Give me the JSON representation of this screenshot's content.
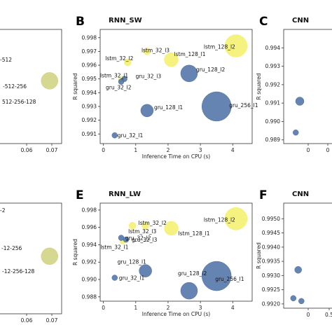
{
  "chart_data": [
    {
      "panel_letter": "",
      "title": "",
      "type": "scatter",
      "xlabel": "",
      "ylabel": "",
      "xlim": [
        0.0,
        0.075
      ],
      "ylim": [
        0.0,
        1.0
      ],
      "xticks": [
        "0.06",
        "0.07"
      ],
      "yticks": [],
      "points": [
        {
          "label": "-512",
          "x": 0.0,
          "y": 0.84,
          "size": 0,
          "color": "#e0dd6a"
        },
        {
          "label": "-512-256",
          "x": 0.063,
          "y": 0.55,
          "size": 12,
          "color": "#cfd07c"
        },
        {
          "label": "512-256-128",
          "x": 0.0,
          "y": 0.36,
          "size": 0,
          "color": "#cfd07c"
        }
      ]
    },
    {
      "panel_letter": "B",
      "title": "RNN_SW",
      "type": "scatter",
      "xlabel": "Inference Time on CPU (s)",
      "ylabel": "R squared",
      "xlim": [
        -0.1,
        4.6
      ],
      "ylim": [
        0.9903,
        0.9986
      ],
      "xticks": [
        "0",
        "1",
        "2",
        "3",
        "4"
      ],
      "yticks": [
        "0.991",
        "0.992",
        "0.993",
        "0.994",
        "0.995",
        "0.996",
        "0.997",
        "0.998"
      ],
      "points": [
        {
          "label": "lstm_128_l2",
          "x": 4.1,
          "y": 0.9974,
          "size": 16,
          "color": "#f3f06a"
        },
        {
          "label": "lstm_32_l3",
          "x": 1.35,
          "y": 0.997,
          "size": 5,
          "color": "#f3f06a"
        },
        {
          "label": "lstm_32_l2",
          "x": 0.75,
          "y": 0.9962,
          "size": 5,
          "color": "#f3f06a"
        },
        {
          "label": "lstm_128_l1",
          "x": 2.1,
          "y": 0.9964,
          "size": 10,
          "color": "#f3f06a"
        },
        {
          "label": "lstm_32_l1",
          "x": 0.55,
          "y": 0.995,
          "size": 4,
          "color": "#f3f06a"
        },
        {
          "label": "gru_32_l3",
          "x": 0.65,
          "y": 0.995,
          "size": 4,
          "color": "#4a6fa5"
        },
        {
          "label": "gru_32_l2",
          "x": 0.55,
          "y": 0.9948,
          "size": 4,
          "color": "#4a6fa5"
        },
        {
          "label": "gru_128_l2",
          "x": 2.65,
          "y": 0.9954,
          "size": 12,
          "color": "#4a6fa5"
        },
        {
          "label": "gru_128_l1",
          "x": 1.35,
          "y": 0.9927,
          "size": 9,
          "color": "#4a6fa5"
        },
        {
          "label": "gru_256_l1",
          "x": 3.5,
          "y": 0.993,
          "size": 21,
          "color": "#4a6fa5"
        },
        {
          "label": "gru_32_l1",
          "x": 0.35,
          "y": 0.9909,
          "size": 4,
          "color": "#4a6fa5"
        }
      ]
    },
    {
      "panel_letter": "C",
      "title": "CNN",
      "type": "scatter",
      "xlabel": "",
      "ylabel": "R squared",
      "xlim": [
        0.0,
        1.0
      ],
      "ylim": [
        0.9888,
        0.995
      ],
      "xticks": [
        "0",
        "0"
      ],
      "yticks": [
        "0.989",
        "0.990",
        "0.991",
        "0.992",
        "0.993",
        "0.994"
      ],
      "points": [
        {
          "label": "",
          "x": 0.2,
          "y": 0.9911,
          "size": 6,
          "color": "#4a6fa5"
        },
        {
          "label": "",
          "x": 0.15,
          "y": 0.9894,
          "size": 4,
          "color": "#4a6fa5"
        }
      ]
    },
    {
      "panel_letter": "",
      "title": "",
      "type": "scatter",
      "xlabel": "",
      "ylabel": "",
      "xlim": [
        0.0,
        0.075
      ],
      "ylim": [
        0.0,
        1.0
      ],
      "xticks": [
        "0.06",
        "0.07"
      ],
      "yticks": [],
      "points": [
        {
          "label": "-2",
          "x": 0.0,
          "y": 0.8,
          "size": 0,
          "color": "#e0dd6a"
        },
        {
          "label": "-12-256",
          "x": 0.063,
          "y": 0.52,
          "size": 12,
          "color": "#cfd07c"
        },
        {
          "label": "-12-256-128",
          "x": 0.0,
          "y": 0.28,
          "size": 0,
          "color": "#cfd07c"
        }
      ]
    },
    {
      "panel_letter": "E",
      "title": "RNN_LW",
      "type": "scatter",
      "xlabel": "Inference Time on CPU (s)",
      "ylabel": "R squared",
      "xlim": [
        -0.1,
        4.6
      ],
      "ylim": [
        0.9875,
        0.9988
      ],
      "xticks": [
        "0",
        "1",
        "2",
        "3",
        "4"
      ],
      "yticks": [
        "0.988",
        "0.990",
        "0.992",
        "0.994",
        "0.996",
        "0.998"
      ],
      "points": [
        {
          "label": "lstm_128_l2",
          "x": 4.1,
          "y": 0.997,
          "size": 16,
          "color": "#f3f06a"
        },
        {
          "label": "lstm_32_l3",
          "x": 0.9,
          "y": 0.9962,
          "size": 5,
          "color": "#f3f06a"
        },
        {
          "label": "lstm_32_l2",
          "x": 1.3,
          "y": 0.9962,
          "size": 5,
          "color": "#f3f06a"
        },
        {
          "label": "lstm_128_l1",
          "x": 2.1,
          "y": 0.9959,
          "size": 10,
          "color": "#f3f06a"
        },
        {
          "label": "lstm_32_l1",
          "x": 0.6,
          "y": 0.9944,
          "size": 4,
          "color": "#f3f06a"
        },
        {
          "label": "gru_32_l3",
          "x": 0.7,
          "y": 0.9946,
          "size": 4,
          "color": "#4a6fa5"
        },
        {
          "label": "gru_32_l2",
          "x": 0.55,
          "y": 0.9948,
          "size": 4,
          "color": "#4a6fa5"
        },
        {
          "label": "gru_128_l1",
          "x": 1.3,
          "y": 0.991,
          "size": 9,
          "color": "#4a6fa5"
        },
        {
          "label": "gru_256_l1",
          "x": 3.5,
          "y": 0.9904,
          "size": 21,
          "color": "#4a6fa5"
        },
        {
          "label": "gru_32_l1",
          "x": 0.35,
          "y": 0.9902,
          "size": 4,
          "color": "#4a6fa5"
        },
        {
          "label": "gru_128_l2",
          "x": 2.65,
          "y": 0.9887,
          "size": 12,
          "color": "#4a6fa5"
        }
      ]
    },
    {
      "panel_letter": "F",
      "title": "CNN",
      "type": "scatter",
      "xlabel": "",
      "ylabel": "R squared",
      "xlim": [
        0.0,
        1.0
      ],
      "ylim": [
        0.99185,
        0.99555
      ],
      "xticks": [
        "0",
        "0.5"
      ],
      "yticks": [
        "0.9920",
        "0.9925",
        "0.9930",
        "0.9935",
        "0.9940",
        "0.9945",
        "0.9950"
      ],
      "points": [
        {
          "label": "",
          "x": 0.18,
          "y": 0.9932,
          "size": 5,
          "color": "#4a6fa5"
        },
        {
          "label": "",
          "x": 0.12,
          "y": 0.9922,
          "size": 4,
          "color": "#4a6fa5"
        },
        {
          "label": "",
          "x": 0.22,
          "y": 0.9921,
          "size": 4,
          "color": "#4a6fa5"
        }
      ]
    }
  ]
}
